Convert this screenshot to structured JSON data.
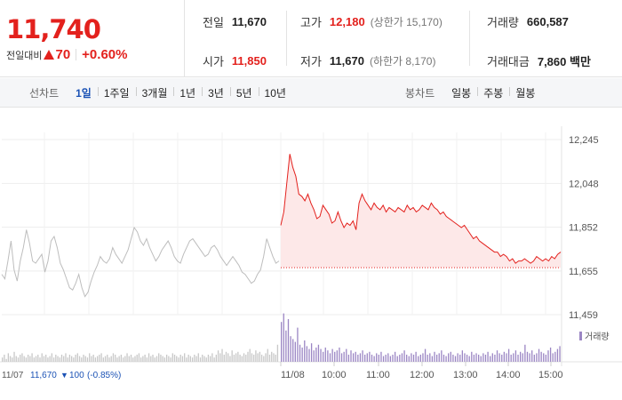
{
  "quote": {
    "current_price": "11,740",
    "change_label": "전일대비",
    "change_amount": "70",
    "change_rate": "+0.60%",
    "prev_close_label": "전일",
    "prev_close": "11,670",
    "open_label": "시가",
    "open": "11,850",
    "high_label": "고가",
    "high": "12,180",
    "upper_limit": "(상한가 15,170)",
    "low_label": "저가",
    "low": "11,670",
    "lower_limit": "(하한가 8,170)",
    "volume_label": "거래량",
    "volume": "660,587",
    "value_label": "거래대금",
    "value": "7,860 백만"
  },
  "tabs": {
    "line_title": "선차트",
    "line_tabs": [
      "1일",
      "1주일",
      "3개월",
      "1년",
      "3년",
      "5년",
      "10년"
    ],
    "active_line_tab": "1일",
    "candle_title": "봉차트",
    "candle_tabs": [
      "일봉",
      "주봉",
      "월봉"
    ]
  },
  "colors": {
    "up": "#e3211d",
    "prev_line": "#bdbdbd",
    "volume_prev": "#c8c8c8",
    "volume_today": "#9b86c4",
    "active_tab": "#1b52b5",
    "fall": "#1b52b5"
  },
  "chart_data": {
    "type": "area",
    "ylim": [
      11459,
      12245
    ],
    "yticks": [
      "12,245",
      "12,048",
      "11,852",
      "11,655",
      "11,459"
    ],
    "ytick_values": [
      12245,
      12048,
      11852,
      11655,
      11459
    ],
    "reference_price": 11670,
    "x_labels": [
      "11/08",
      "10:00",
      "11:00",
      "12:00",
      "13:00",
      "14:00",
      "15:00"
    ],
    "prev_session": {
      "date": "11/07",
      "close": "11,670",
      "change": "100",
      "rate": "(-0.85%)",
      "values": [
        11640,
        11620,
        11700,
        11790,
        11660,
        11610,
        11700,
        11760,
        11840,
        11780,
        11700,
        11690,
        11710,
        11730,
        11650,
        11700,
        11790,
        11810,
        11760,
        11690,
        11660,
        11620,
        11580,
        11570,
        11600,
        11640,
        11580,
        11540,
        11560,
        11610,
        11650,
        11680,
        11720,
        11700,
        11690,
        11710,
        11760,
        11730,
        11710,
        11690,
        11720,
        11750,
        11800,
        11850,
        11830,
        11790,
        11770,
        11800,
        11760,
        11730,
        11700,
        11720,
        11750,
        11770,
        11790,
        11760,
        11720,
        11700,
        11690,
        11730,
        11760,
        11790,
        11800,
        11780,
        11760,
        11740,
        11720,
        11730,
        11760,
        11770,
        11750,
        11720,
        11700,
        11680,
        11700,
        11720,
        11700,
        11680,
        11650,
        11640,
        11620,
        11600,
        11610,
        11640,
        11660,
        11720,
        11800,
        11760,
        11720,
        11690,
        11700
      ]
    },
    "today_series": {
      "values": [
        11860,
        11920,
        12050,
        12180,
        12120,
        12080,
        12000,
        11990,
        11970,
        12000,
        11960,
        11930,
        11890,
        11900,
        11950,
        11930,
        11910,
        11870,
        11880,
        11920,
        11880,
        11850,
        11870,
        11860,
        11880,
        11840,
        11960,
        12000,
        11970,
        11950,
        11930,
        11960,
        11940,
        11930,
        11950,
        11920,
        11940,
        11930,
        11920,
        11940,
        11930,
        11920,
        11950,
        11930,
        11940,
        11920,
        11930,
        11950,
        11940,
        11930,
        11960,
        11940,
        11930,
        11910,
        11920,
        11900,
        11890,
        11880,
        11870,
        11860,
        11850,
        11860,
        11840,
        11820,
        11800,
        11810,
        11790,
        11780,
        11770,
        11760,
        11750,
        11740,
        11740,
        11720,
        11730,
        11720,
        11700,
        11710,
        11690,
        11700,
        11700,
        11710,
        11700,
        11690,
        11700,
        11720,
        11710,
        11700,
        11710,
        11700,
        11720,
        11710,
        11730,
        11740
      ]
    },
    "volume_legend": "거래량",
    "volume_prev": [
      3,
      5,
      2,
      6,
      4,
      3,
      7,
      4,
      3,
      5,
      6,
      4,
      3,
      5,
      4,
      6,
      3,
      4,
      5,
      3,
      6,
      4,
      5,
      3,
      4,
      6,
      3,
      5,
      4,
      3,
      5,
      4,
      6,
      3,
      5,
      4,
      3,
      5,
      6,
      4,
      3,
      5,
      4,
      3,
      6,
      4,
      5,
      3,
      4,
      5,
      6,
      3,
      4,
      5,
      3,
      4,
      6,
      5,
      3,
      4,
      5,
      3,
      4,
      6,
      4,
      5,
      3,
      4,
      5,
      6,
      3,
      4,
      5,
      3,
      6,
      4,
      5,
      3,
      4,
      6,
      5,
      4,
      3,
      5,
      4,
      3,
      6,
      5,
      4,
      3,
      5,
      4,
      6,
      3,
      5,
      4,
      3,
      5,
      4,
      6,
      3,
      5,
      4,
      3,
      5,
      4,
      6,
      3,
      5,
      8,
      6,
      9,
      5,
      7,
      6,
      4,
      8,
      5,
      6,
      7,
      5,
      4,
      6,
      5,
      7,
      9,
      6,
      5,
      8,
      6,
      7,
      5,
      4,
      6,
      9,
      5,
      7,
      6,
      5,
      12
    ],
    "volume_today": [
      28,
      34,
      22,
      30,
      18,
      16,
      14,
      24,
      12,
      10,
      15,
      11,
      9,
      13,
      8,
      10,
      12,
      9,
      7,
      10,
      8,
      6,
      9,
      7,
      8,
      10,
      6,
      7,
      9,
      5,
      8,
      6,
      7,
      5,
      6,
      8,
      5,
      6,
      7,
      5,
      4,
      6,
      5,
      7,
      4,
      5,
      6,
      4,
      5,
      7,
      4,
      5,
      6,
      8,
      5,
      4,
      6,
      5,
      7,
      4,
      5,
      6,
      9,
      5,
      6,
      4,
      7,
      5,
      6,
      8,
      5,
      4,
      6,
      7,
      5,
      4,
      6,
      5,
      8,
      6,
      5,
      4,
      7,
      5,
      6,
      5,
      4,
      6,
      5,
      7,
      4,
      6,
      5,
      8,
      6,
      5,
      7,
      6,
      9,
      5,
      6,
      8,
      5,
      7,
      6,
      12,
      7,
      6,
      8,
      5,
      6,
      9,
      7,
      6,
      5,
      8,
      10,
      6,
      7,
      9,
      11
    ]
  }
}
